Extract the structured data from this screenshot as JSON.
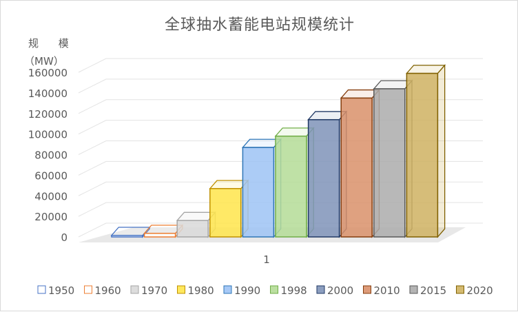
{
  "chart_data": {
    "type": "bar",
    "title": "全球抽水蓄能电站规模统计",
    "ylabel_line1": "规 模",
    "ylabel_line2": "（MW）",
    "categories": [
      "1"
    ],
    "ylim": [
      0,
      160000
    ],
    "yticks": [
      0,
      20000,
      40000,
      60000,
      80000,
      100000,
      120000,
      140000,
      160000
    ],
    "grid": true,
    "legend_position": "bottom",
    "series": [
      {
        "name": "1950",
        "value": 1500,
        "color": "#4472C4",
        "fill": "#ffffff"
      },
      {
        "name": "1960",
        "value": 3500,
        "color": "#ED7D31",
        "fill": "#ffffff"
      },
      {
        "name": "1970",
        "value": 16000,
        "color": "#A5A5A5",
        "fill": "#D9D9D9"
      },
      {
        "name": "1980",
        "value": 47000,
        "color": "#BF9000",
        "fill": "#FFE54B"
      },
      {
        "name": "1990",
        "value": 87000,
        "color": "#2E75B6",
        "fill": "#9DC3F5"
      },
      {
        "name": "1998",
        "value": 98000,
        "color": "#70AD47",
        "fill": "#B4DC96"
      },
      {
        "name": "2000",
        "value": 114000,
        "color": "#203864",
        "fill": "#7F93B8"
      },
      {
        "name": "2010",
        "value": 135000,
        "color": "#843C0C",
        "fill": "#D9906A"
      },
      {
        "name": "2015",
        "value": 144000,
        "color": "#595959",
        "fill": "#ACACAC"
      },
      {
        "name": "2020",
        "value": 159000,
        "color": "#7F6000",
        "fill": "#CFB261"
      }
    ]
  }
}
